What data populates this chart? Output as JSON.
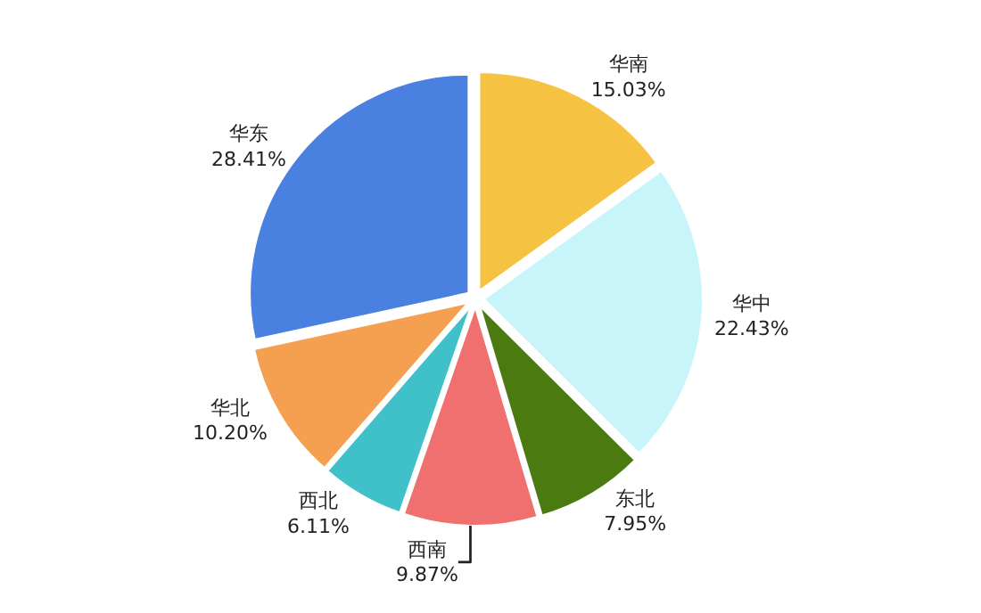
{
  "chart_data": {
    "type": "pie",
    "categories": [
      "华南",
      "华中",
      "东北",
      "西南",
      "西北",
      "华北",
      "华东"
    ],
    "values": [
      15.03,
      22.43,
      7.95,
      9.87,
      6.11,
      10.2,
      28.41
    ],
    "value_labels": [
      "15.03%",
      "22.43%",
      "7.95%",
      "9.87%",
      "6.11%",
      "10.20%",
      "28.41%"
    ],
    "colors": [
      "#f5c242",
      "#c8f5fa",
      "#4a7a10",
      "#f07070",
      "#40c0c8",
      "#f5a050",
      "#4a80e0"
    ],
    "legend": false
  }
}
